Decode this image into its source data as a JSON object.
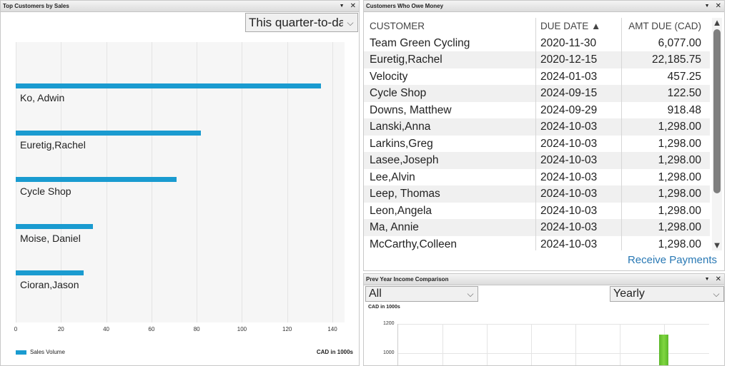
{
  "top_customers": {
    "title": "Top Customers by Sales",
    "period_select": "This quarter-to-date",
    "legend": "Sales Volume",
    "unit": "CAD in 1000s",
    "x_ticks": [
      "0",
      "20",
      "40",
      "60",
      "80",
      "100",
      "120",
      "140"
    ],
    "color": "#1a9bd0"
  },
  "chart_data": {
    "type": "bar",
    "orientation": "horizontal",
    "categories": [
      "Ko, Adwin",
      "Euretig,Rachel",
      "Cycle Shop",
      "Moise, Daniel",
      "Cioran,Jason"
    ],
    "values": [
      135,
      82,
      71,
      34,
      30
    ],
    "xlim": [
      0,
      140
    ],
    "xlabel": "CAD in 1000s",
    "legend": "Sales Volume"
  },
  "owe_money": {
    "title": "Customers Who Owe Money",
    "headers": {
      "customer": "CUSTOMER",
      "due_date": "DUE DATE ▲",
      "amount": "AMT DUE (CAD)"
    },
    "rows": [
      {
        "customer": "Team Green Cycling",
        "due": "2020-11-30",
        "amount": "6,077.00"
      },
      {
        "customer": "Euretig,Rachel",
        "due": "2020-12-15",
        "amount": "22,185.75"
      },
      {
        "customer": "Velocity",
        "due": "2024-01-03",
        "amount": "457.25"
      },
      {
        "customer": "Cycle Shop",
        "due": "2024-09-15",
        "amount": "122.50"
      },
      {
        "customer": "Downs, Matthew",
        "due": "2024-09-29",
        "amount": "918.48"
      },
      {
        "customer": "Lanski,Anna",
        "due": "2024-10-03",
        "amount": "1,298.00"
      },
      {
        "customer": "Larkins,Greg",
        "due": "2024-10-03",
        "amount": "1,298.00"
      },
      {
        "customer": "Lasee,Joseph",
        "due": "2024-10-03",
        "amount": "1,298.00"
      },
      {
        "customer": "Lee,Alvin",
        "due": "2024-10-03",
        "amount": "1,298.00"
      },
      {
        "customer": "Leep, Thomas",
        "due": "2024-10-03",
        "amount": "1,298.00"
      },
      {
        "customer": "Leon,Angela",
        "due": "2024-10-03",
        "amount": "1,298.00"
      },
      {
        "customer": "Ma, Annie",
        "due": "2024-10-03",
        "amount": "1,298.00"
      },
      {
        "customer": "McCarthy,Colleen",
        "due": "2024-10-03",
        "amount": "1,298.00"
      }
    ],
    "link": "Receive Payments"
  },
  "prev_year": {
    "title": "Prev Year Income Comparison",
    "filter_select": "All",
    "period_select": "Yearly",
    "unit": "CAD in 1000s",
    "y_ticks": [
      "1200",
      "1000"
    ],
    "bar_color": "#5cb82a"
  }
}
